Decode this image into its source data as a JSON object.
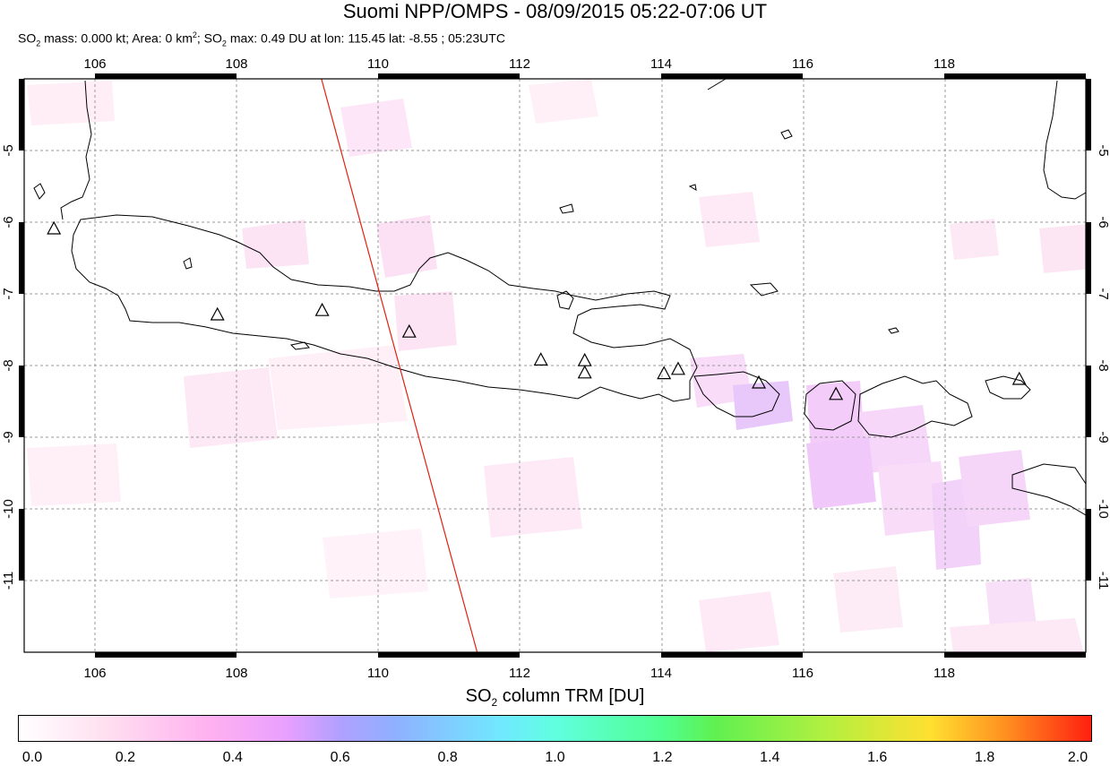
{
  "header": {
    "title": "Suomi NPP/OMPS - 08/09/2015 05:22-07:06 UT",
    "subtitle_mass_label": "SO",
    "subtitle_mass_rest": " mass: 0.000 kt; Area: 0 km",
    "subtitle_area_unit_sup": "2",
    "subtitle_max_label": "; SO",
    "subtitle_max_rest": " max: 0.49 DU at lon: 115.45 lat: -8.55 ; 05:23UTC",
    "sub_2": "2"
  },
  "map": {
    "lon_ticks": [
      "106",
      "108",
      "110",
      "112",
      "114",
      "116",
      "118"
    ],
    "lat_ticks": [
      "-5",
      "-6",
      "-7",
      "-8",
      "-9",
      "-10",
      "-11"
    ],
    "lon_range": [
      105.0,
      120.0
    ],
    "lat_range": [
      -12.0,
      -4.0
    ],
    "track_line": {
      "start": [
        109.2,
        -4.0
      ],
      "end": [
        111.4,
        -12.0
      ],
      "color": "#e02010"
    },
    "volcano_icon": "triangle-icon",
    "volcanoes": [
      {
        "lon": 105.42,
        "lat": -6.1
      },
      {
        "lon": 107.73,
        "lat": -7.3
      },
      {
        "lon": 109.21,
        "lat": -7.24
      },
      {
        "lon": 110.44,
        "lat": -7.54
      },
      {
        "lon": 112.3,
        "lat": -7.93
      },
      {
        "lon": 112.92,
        "lat": -7.94
      },
      {
        "lon": 112.92,
        "lat": -8.11
      },
      {
        "lon": 114.04,
        "lat": -8.12
      },
      {
        "lon": 114.24,
        "lat": -8.06
      },
      {
        "lon": 115.38,
        "lat": -8.25
      },
      {
        "lon": 116.47,
        "lat": -8.41
      },
      {
        "lon": 119.06,
        "lat": -8.2
      }
    ]
  },
  "colorbar": {
    "title_prefix": "SO",
    "title_sub": "2",
    "title_suffix": " column TRM [DU]",
    "labels": [
      "0.0",
      "0.2",
      "0.4",
      "0.6",
      "0.8",
      "1.0",
      "1.2",
      "1.4",
      "1.6",
      "1.8",
      "2.0"
    ]
  }
}
